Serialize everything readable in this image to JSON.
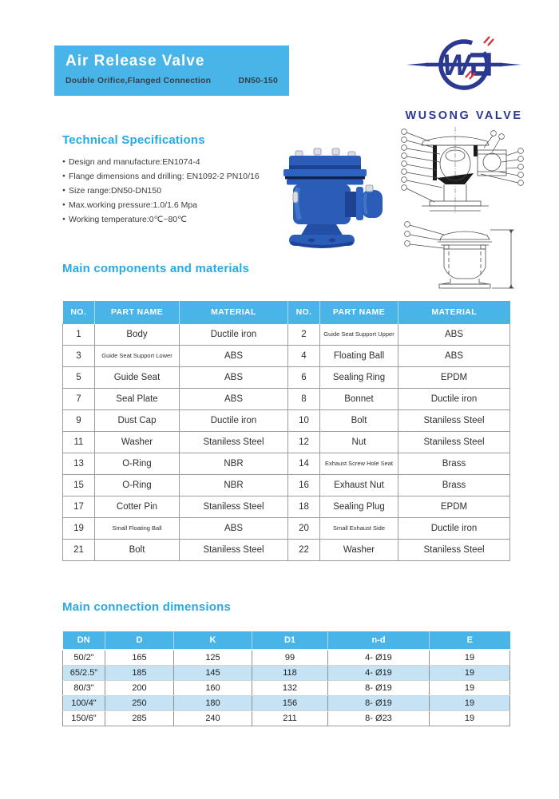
{
  "header": {
    "title": "Air Release Valve",
    "subtitle": "Double Orifice,Flanged Connection",
    "size_range": "DN50-150"
  },
  "logo": {
    "company": "WUSONG VALVE",
    "mark": "ws-monogram-icon"
  },
  "tech_specs": {
    "heading": "Technical Specifications",
    "items": [
      "Design and manufacture:EN1074-4",
      "Flange dimensions and drilling: EN1092-2 PN10/16",
      "Size range:DN50-DN150",
      "Max.working pressure:1.0/1.6 Mpa",
      "Working temperature:0℃~80℃"
    ]
  },
  "components": {
    "heading": "Main components and materials",
    "columns": [
      "NO.",
      "PART NAME",
      "MATERIAL",
      "NO.",
      "PART NAME",
      "MATERIAL"
    ],
    "rows": [
      [
        "1",
        "Body",
        "Ductile iron",
        "2",
        "Guide Seat Support Upper",
        "ABS"
      ],
      [
        "3",
        "Guide Seat Support Lower",
        "ABS",
        "4",
        "Floating Ball",
        "ABS"
      ],
      [
        "5",
        "Guide Seat",
        "ABS",
        "6",
        "Sealing Ring",
        "EPDM"
      ],
      [
        "7",
        "Seal Plate",
        "ABS",
        "8",
        "Bonnet",
        "Ductile iron"
      ],
      [
        "9",
        "Dust Cap",
        "Ductile iron",
        "10",
        "Bolt",
        "Staniless Steel"
      ],
      [
        "11",
        "Washer",
        "Staniless Steel",
        "12",
        "Nut",
        "Staniless Steel"
      ],
      [
        "13",
        "O-Ring",
        "NBR",
        "14",
        "Exhaust Screw Hole Seat",
        "Brass"
      ],
      [
        "15",
        "O-Ring",
        "NBR",
        "16",
        "Exhaust Nut",
        "Brass"
      ],
      [
        "17",
        "Cotter Pin",
        "Staniless Steel",
        "18",
        "Sealing Plug",
        "EPDM"
      ],
      [
        "19",
        "Small Floating Ball",
        "ABS",
        "20",
        "Small Exhaust Side",
        "Ductile iron"
      ],
      [
        "21",
        "Bolt",
        "Staniless Steel",
        "22",
        "Washer",
        "Staniless Steel"
      ]
    ]
  },
  "dimensions": {
    "heading": "Main connection dimensions",
    "columns": [
      "DN",
      "D",
      "K",
      "D1",
      "n-d",
      "E"
    ],
    "rows": [
      [
        "50/2\"",
        "165",
        "125",
        "99",
        "4- Ø19",
        "19"
      ],
      [
        "65/2.5\"",
        "185",
        "145",
        "118",
        "4- Ø19",
        "19"
      ],
      [
        "80/3\"",
        "200",
        "160",
        "132",
        "8- Ø19",
        "19"
      ],
      [
        "100/4\"",
        "250",
        "180",
        "156",
        "8- Ø19",
        "19"
      ],
      [
        "150/6\"",
        "285",
        "240",
        "211",
        "8- Ø23",
        "19"
      ]
    ],
    "striped_rows": [
      1,
      3
    ]
  },
  "colors": {
    "accent_blue": "#49B4E8",
    "heading_blue": "#29A9E1",
    "stripe_blue": "#C6E3F5",
    "subtitle_dark": "#33414C",
    "logo_navy": "#2B3990",
    "logo_red": "#D6363C",
    "valve_blue": "#2B5CB8",
    "valve_dark": "#1D4392",
    "valve_light": "#4F82D6"
  }
}
